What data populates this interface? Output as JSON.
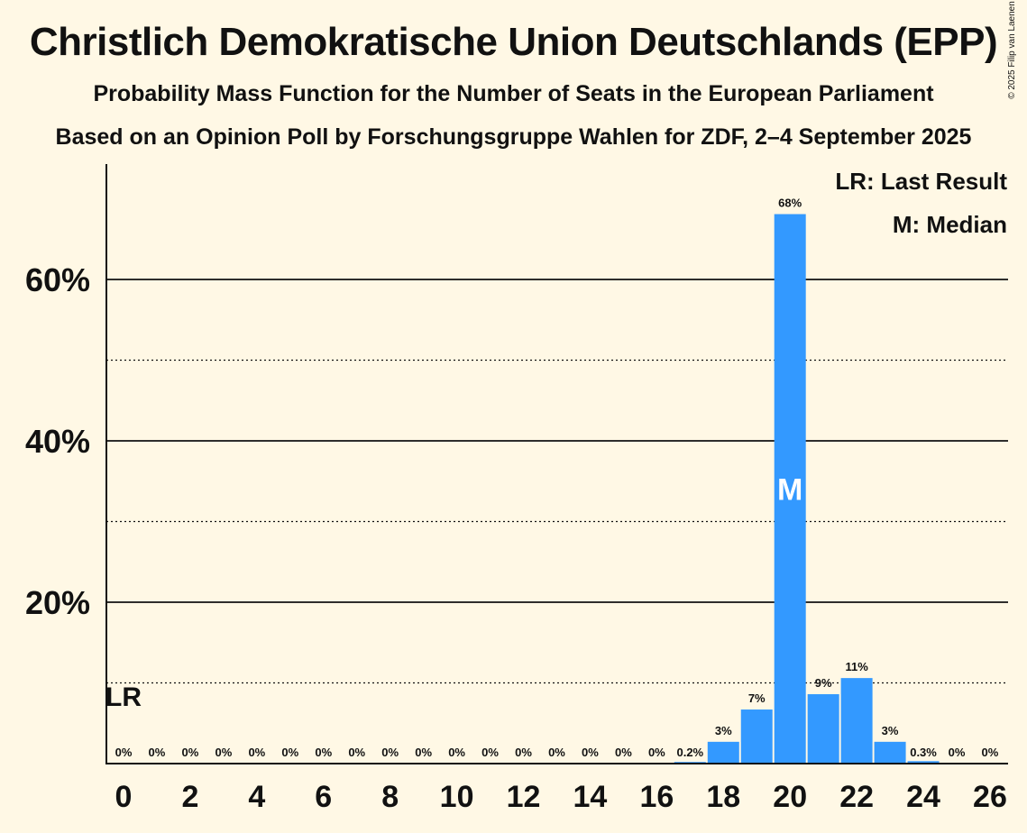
{
  "title": "Christlich Demokratische Union Deutschlands (EPP)",
  "subtitle1": "Probability Mass Function for the Number of Seats in the European Parliament",
  "subtitle2": "Based on an Opinion Poll by Forschungsgruppe Wahlen for ZDF, 2–4 September 2025",
  "copyright": "© 2025 Filip van Laenen",
  "legend": {
    "lr": "LR: Last Result",
    "m": "M: Median"
  },
  "colors": {
    "bar": "#3399ff",
    "background": "#fff8e5",
    "text": "#111111"
  },
  "chart_data": {
    "type": "bar",
    "x": [
      0,
      1,
      2,
      3,
      4,
      5,
      6,
      7,
      8,
      9,
      10,
      11,
      12,
      13,
      14,
      15,
      16,
      17,
      18,
      19,
      20,
      21,
      22,
      23,
      24,
      25,
      26
    ],
    "values": [
      0,
      0,
      0,
      0,
      0,
      0,
      0,
      0,
      0,
      0,
      0,
      0,
      0,
      0,
      0,
      0,
      0,
      0.2,
      2.7,
      6.7,
      68.1,
      8.6,
      10.6,
      2.7,
      0.3,
      0,
      0
    ],
    "labels": [
      "0%",
      "0%",
      "0%",
      "0%",
      "0%",
      "0%",
      "0%",
      "0%",
      "0%",
      "0%",
      "0%",
      "0%",
      "0%",
      "0%",
      "0%",
      "0%",
      "0%",
      "0.2%",
      "3%",
      "7%",
      "68%",
      "9%",
      "11%",
      "3%",
      "0.3%",
      "0%",
      "0%"
    ],
    "xticks": [
      "0",
      "2",
      "4",
      "6",
      "8",
      "10",
      "12",
      "14",
      "16",
      "18",
      "20",
      "22",
      "24",
      "26"
    ],
    "yticks": [
      "20%",
      "40%",
      "60%"
    ],
    "ylim": [
      0,
      74
    ],
    "median": 20,
    "median_label": "M",
    "last_result": 0,
    "last_result_label": "LR",
    "grid": true
  }
}
